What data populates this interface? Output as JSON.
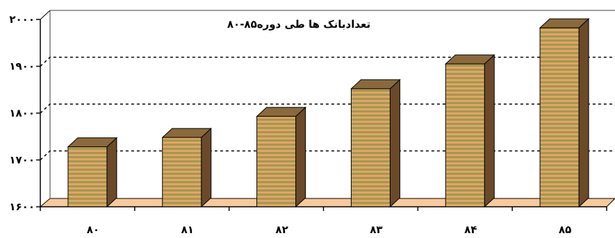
{
  "chart_data": {
    "type": "bar",
    "title": "تعدادبانک ها طی دوره۸۵-۸۰",
    "categories": [
      "۸۰",
      "۸۱",
      "۸۲",
      "۸۳",
      "۸۴",
      "۸۵"
    ],
    "values": [
      1728,
      1748,
      1793,
      1852,
      1905,
      1982
    ],
    "ylim": [
      1600,
      2000
    ],
    "yticks": [
      1600,
      1700,
      1800,
      1900,
      2000
    ],
    "ytick_labels": [
      "۱۶۰۰",
      "۱۷۰۰",
      "۱۸۰۰",
      "۱۹۰۰",
      "۲۰۰۰"
    ],
    "grid": "dotted horizontal",
    "legend": "none",
    "colors": {
      "bar_front_stripe_a": "#E8A35F",
      "bar_front_stripe_b": "#9C9A57",
      "bar_top": "#8A6A3C",
      "bar_side": "#6B4A2A",
      "floor": "#F7C99B",
      "back_wall": "#FFFFFF"
    }
  }
}
